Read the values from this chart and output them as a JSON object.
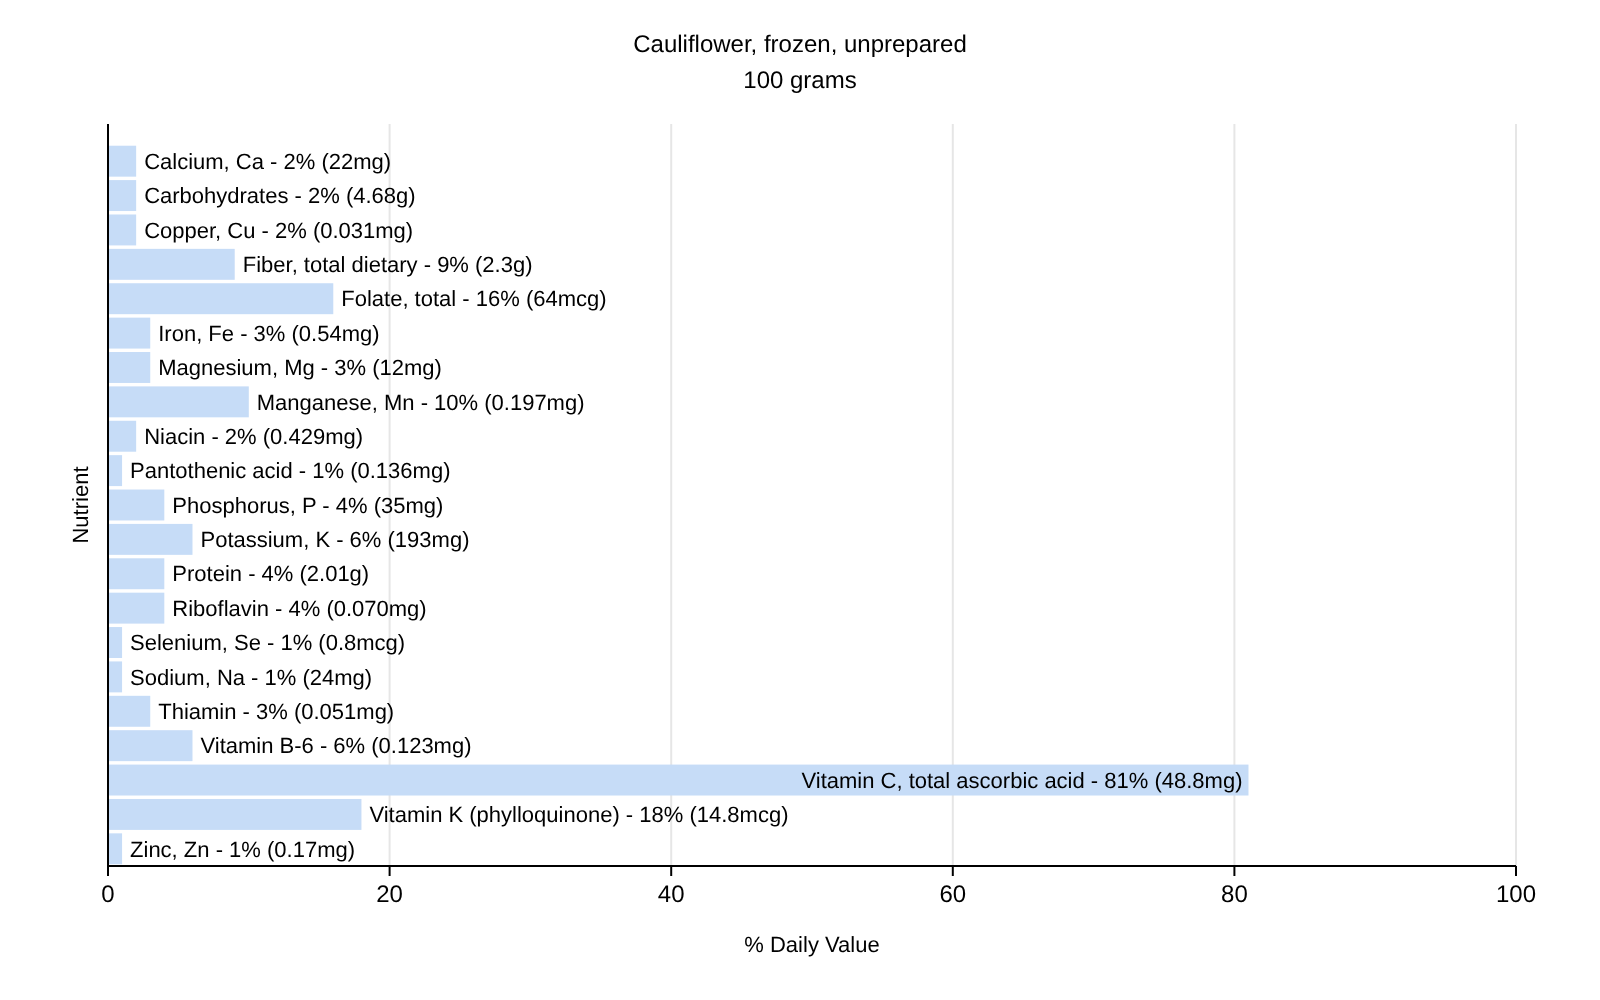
{
  "chart_data": {
    "type": "bar",
    "orientation": "horizontal",
    "title": "Cauliflower, frozen, unprepared",
    "subtitle": "100 grams",
    "xlabel": "% Daily Value",
    "ylabel": "Nutrient",
    "values": [
      2,
      2,
      2,
      9,
      16,
      3,
      3,
      10,
      2,
      1,
      4,
      6,
      4,
      4,
      1,
      1,
      3,
      6,
      81,
      18,
      1
    ],
    "categories": [
      "Calcium, Ca - 2% (22mg)",
      "Carbohydrates - 2% (4.68g)",
      "Copper, Cu - 2% (0.031mg)",
      "Fiber, total dietary - 9% (2.3g)",
      "Folate, total - 16% (64mcg)",
      "Iron, Fe - 3% (0.54mg)",
      "Magnesium, Mg - 3% (12mg)",
      "Manganese, Mn - 10% (0.197mg)",
      "Niacin - 2% (0.429mg)",
      "Pantothenic acid - 1% (0.136mg)",
      "Phosphorus, P - 4% (35mg)",
      "Potassium, K - 6% (193mg)",
      "Protein - 4% (2.01g)",
      "Riboflavin - 4% (0.070mg)",
      "Selenium, Se - 1% (0.8mcg)",
      "Sodium, Na - 1% (24mg)",
      "Thiamin - 3% (0.051mg)",
      "Vitamin B-6 - 6% (0.123mg)",
      "Vitamin C, total ascorbic acid - 81% (48.8mg)",
      "Vitamin K (phylloquinone) - 18% (14.8mcg)",
      "Zinc, Zn - 1% (0.17mg)"
    ],
    "color": "#c6dcf7",
    "xlim": [
      0,
      100
    ],
    "xticks": [
      0,
      20,
      40,
      60,
      80,
      100
    ],
    "grid": "x"
  }
}
